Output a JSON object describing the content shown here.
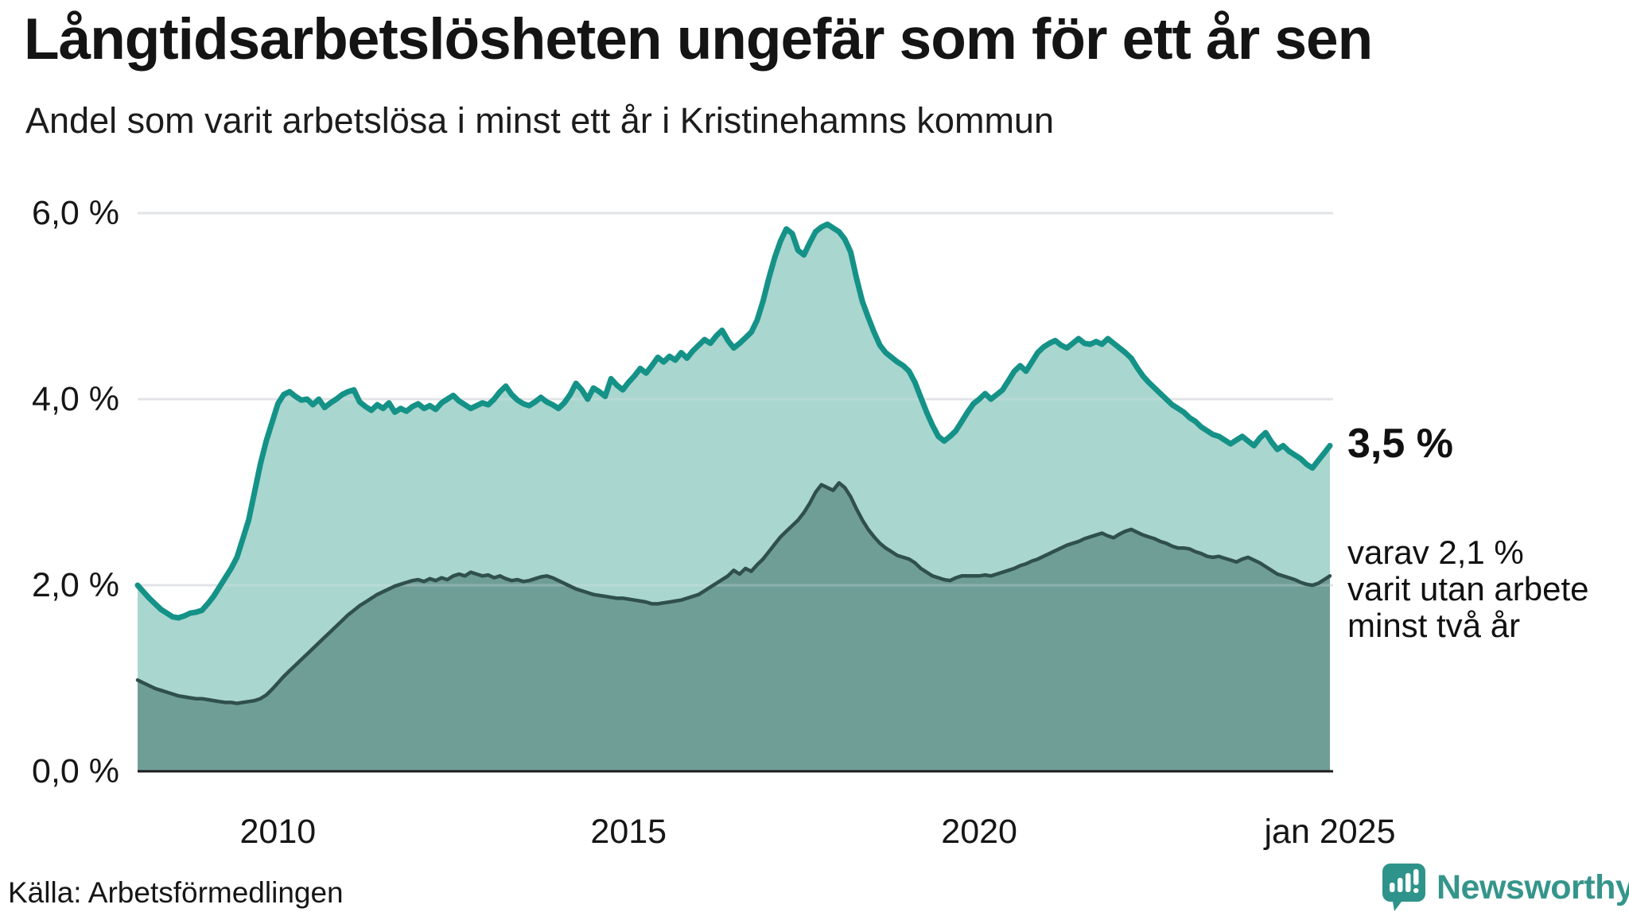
{
  "title": "Långtidsarbetslösheten ungefär som för ett år sen",
  "subtitle": "Andel som varit arbetslösa i minst ett år i Kristinehamns kommun",
  "colors": {
    "line_1yr": "#159287",
    "fill_1yr": "#a9d6cf",
    "line_2yr": "#30504c",
    "fill_2yr": "#6f9e97",
    "gridline": "#e3e4e8",
    "axis": "#1c1c1c",
    "text": "#141414",
    "logo_teal": "#35958b"
  },
  "chart_data": {
    "type": "area",
    "title": "Långtidsarbetslösheten ungefär som för ett år sen",
    "subtitle": "Andel som varit arbetslösa i minst ett år i Kristinehamns kommun",
    "unit": "%",
    "x_start": "2008-01",
    "x_end": "2025-01",
    "x_frequency": "monthly",
    "ylim": [
      0,
      6.35
    ],
    "grid": "horizontal",
    "y_ticks": [
      "6,0 %",
      "4,0 %",
      "2,0 %",
      "0,0 %"
    ],
    "y_tick_values": [
      6,
      4,
      2,
      0
    ],
    "x_tick_labels": [
      "2010",
      "2015",
      "2020",
      "jan 2025"
    ],
    "x_tick_years": [
      2010,
      2015,
      2020,
      2025
    ],
    "series": [
      {
        "name": "Andel arbetslösa minst ett år",
        "last_value_label": "3,5 %",
        "values": [
          2.0,
          1.93,
          1.86,
          1.8,
          1.74,
          1.7,
          1.66,
          1.65,
          1.67,
          1.7,
          1.71,
          1.73,
          1.8,
          1.88,
          1.98,
          2.08,
          2.18,
          2.3,
          2.5,
          2.7,
          3.0,
          3.3,
          3.55,
          3.75,
          3.95,
          4.05,
          4.08,
          4.03,
          3.99,
          4.0,
          3.94,
          4.0,
          3.91,
          3.96,
          4.0,
          4.05,
          4.08,
          4.1,
          3.97,
          3.92,
          3.88,
          3.94,
          3.9,
          3.96,
          3.86,
          3.9,
          3.87,
          3.92,
          3.95,
          3.9,
          3.93,
          3.89,
          3.96,
          4.0,
          4.04,
          3.98,
          3.94,
          3.9,
          3.93,
          3.96,
          3.94,
          4.0,
          4.08,
          4.14,
          4.05,
          3.99,
          3.95,
          3.93,
          3.97,
          4.02,
          3.97,
          3.94,
          3.9,
          3.96,
          4.05,
          4.17,
          4.1,
          4.0,
          4.12,
          4.08,
          4.03,
          4.22,
          4.15,
          4.1,
          4.18,
          4.25,
          4.33,
          4.28,
          4.36,
          4.45,
          4.4,
          4.46,
          4.42,
          4.5,
          4.44,
          4.52,
          4.58,
          4.64,
          4.6,
          4.68,
          4.74,
          4.63,
          4.55,
          4.6,
          4.66,
          4.72,
          4.85,
          5.05,
          5.3,
          5.52,
          5.7,
          5.83,
          5.78,
          5.6,
          5.55,
          5.68,
          5.8,
          5.85,
          5.88,
          5.84,
          5.8,
          5.72,
          5.58,
          5.3,
          5.05,
          4.88,
          4.72,
          4.58,
          4.5,
          4.45,
          4.4,
          4.36,
          4.3,
          4.18,
          4.02,
          3.86,
          3.72,
          3.6,
          3.55,
          3.6,
          3.66,
          3.76,
          3.86,
          3.95,
          4.0,
          4.06,
          4.0,
          4.05,
          4.1,
          4.2,
          4.3,
          4.36,
          4.3,
          4.4,
          4.5,
          4.56,
          4.6,
          4.63,
          4.58,
          4.55,
          4.6,
          4.65,
          4.6,
          4.59,
          4.62,
          4.59,
          4.65,
          4.6,
          4.55,
          4.5,
          4.44,
          4.34,
          4.25,
          4.18,
          4.12,
          4.06,
          4.0,
          3.94,
          3.9,
          3.86,
          3.8,
          3.76,
          3.7,
          3.66,
          3.62,
          3.6,
          3.56,
          3.52,
          3.56,
          3.6,
          3.55,
          3.5,
          3.58,
          3.64,
          3.54,
          3.46,
          3.5,
          3.44,
          3.4,
          3.36,
          3.3,
          3.26,
          3.34,
          3.42,
          3.5
        ]
      },
      {
        "name": "Andel arbetslösa minst två år",
        "last_value_label": "2,1 %",
        "values": [
          0.98,
          0.95,
          0.92,
          0.89,
          0.87,
          0.85,
          0.83,
          0.81,
          0.8,
          0.79,
          0.78,
          0.78,
          0.77,
          0.76,
          0.75,
          0.74,
          0.74,
          0.73,
          0.74,
          0.75,
          0.76,
          0.78,
          0.82,
          0.88,
          0.95,
          1.02,
          1.08,
          1.14,
          1.2,
          1.26,
          1.32,
          1.38,
          1.44,
          1.5,
          1.56,
          1.62,
          1.68,
          1.73,
          1.78,
          1.82,
          1.86,
          1.9,
          1.93,
          1.96,
          1.99,
          2.01,
          2.03,
          2.05,
          2.06,
          2.04,
          2.07,
          2.05,
          2.08,
          2.06,
          2.1,
          2.12,
          2.1,
          2.14,
          2.12,
          2.1,
          2.11,
          2.08,
          2.1,
          2.07,
          2.05,
          2.06,
          2.04,
          2.05,
          2.07,
          2.09,
          2.1,
          2.08,
          2.05,
          2.02,
          1.99,
          1.96,
          1.94,
          1.92,
          1.9,
          1.89,
          1.88,
          1.87,
          1.86,
          1.86,
          1.85,
          1.84,
          1.83,
          1.82,
          1.8,
          1.8,
          1.81,
          1.82,
          1.83,
          1.84,
          1.86,
          1.88,
          1.9,
          1.94,
          1.98,
          2.02,
          2.06,
          2.1,
          2.16,
          2.12,
          2.18,
          2.15,
          2.22,
          2.28,
          2.36,
          2.44,
          2.52,
          2.58,
          2.64,
          2.7,
          2.78,
          2.88,
          3.0,
          3.08,
          3.05,
          3.02,
          3.1,
          3.05,
          2.95,
          2.82,
          2.7,
          2.6,
          2.52,
          2.45,
          2.4,
          2.36,
          2.32,
          2.3,
          2.28,
          2.24,
          2.18,
          2.14,
          2.1,
          2.08,
          2.06,
          2.05,
          2.08,
          2.1,
          2.1,
          2.1,
          2.1,
          2.11,
          2.1,
          2.12,
          2.14,
          2.16,
          2.18,
          2.21,
          2.23,
          2.26,
          2.28,
          2.31,
          2.34,
          2.37,
          2.4,
          2.43,
          2.45,
          2.47,
          2.5,
          2.52,
          2.54,
          2.56,
          2.53,
          2.51,
          2.55,
          2.58,
          2.6,
          2.57,
          2.54,
          2.52,
          2.5,
          2.47,
          2.45,
          2.42,
          2.4,
          2.4,
          2.39,
          2.36,
          2.34,
          2.31,
          2.3,
          2.31,
          2.29,
          2.27,
          2.25,
          2.28,
          2.3,
          2.27,
          2.24,
          2.2,
          2.16,
          2.12,
          2.1,
          2.08,
          2.06,
          2.03,
          2.01,
          2.0,
          2.02,
          2.06,
          2.1
        ]
      }
    ],
    "annotations": [
      {
        "text": "3,5 %",
        "value": 3.5,
        "series": 0
      },
      {
        "lines": [
          "varav 2,1 %",
          "varit utan arbete",
          "minst två år"
        ],
        "value": 2.1,
        "series": 1
      }
    ]
  },
  "footer": {
    "source": "Källa: Arbetsförmedlingen",
    "logo_text": "Newsworthy"
  }
}
